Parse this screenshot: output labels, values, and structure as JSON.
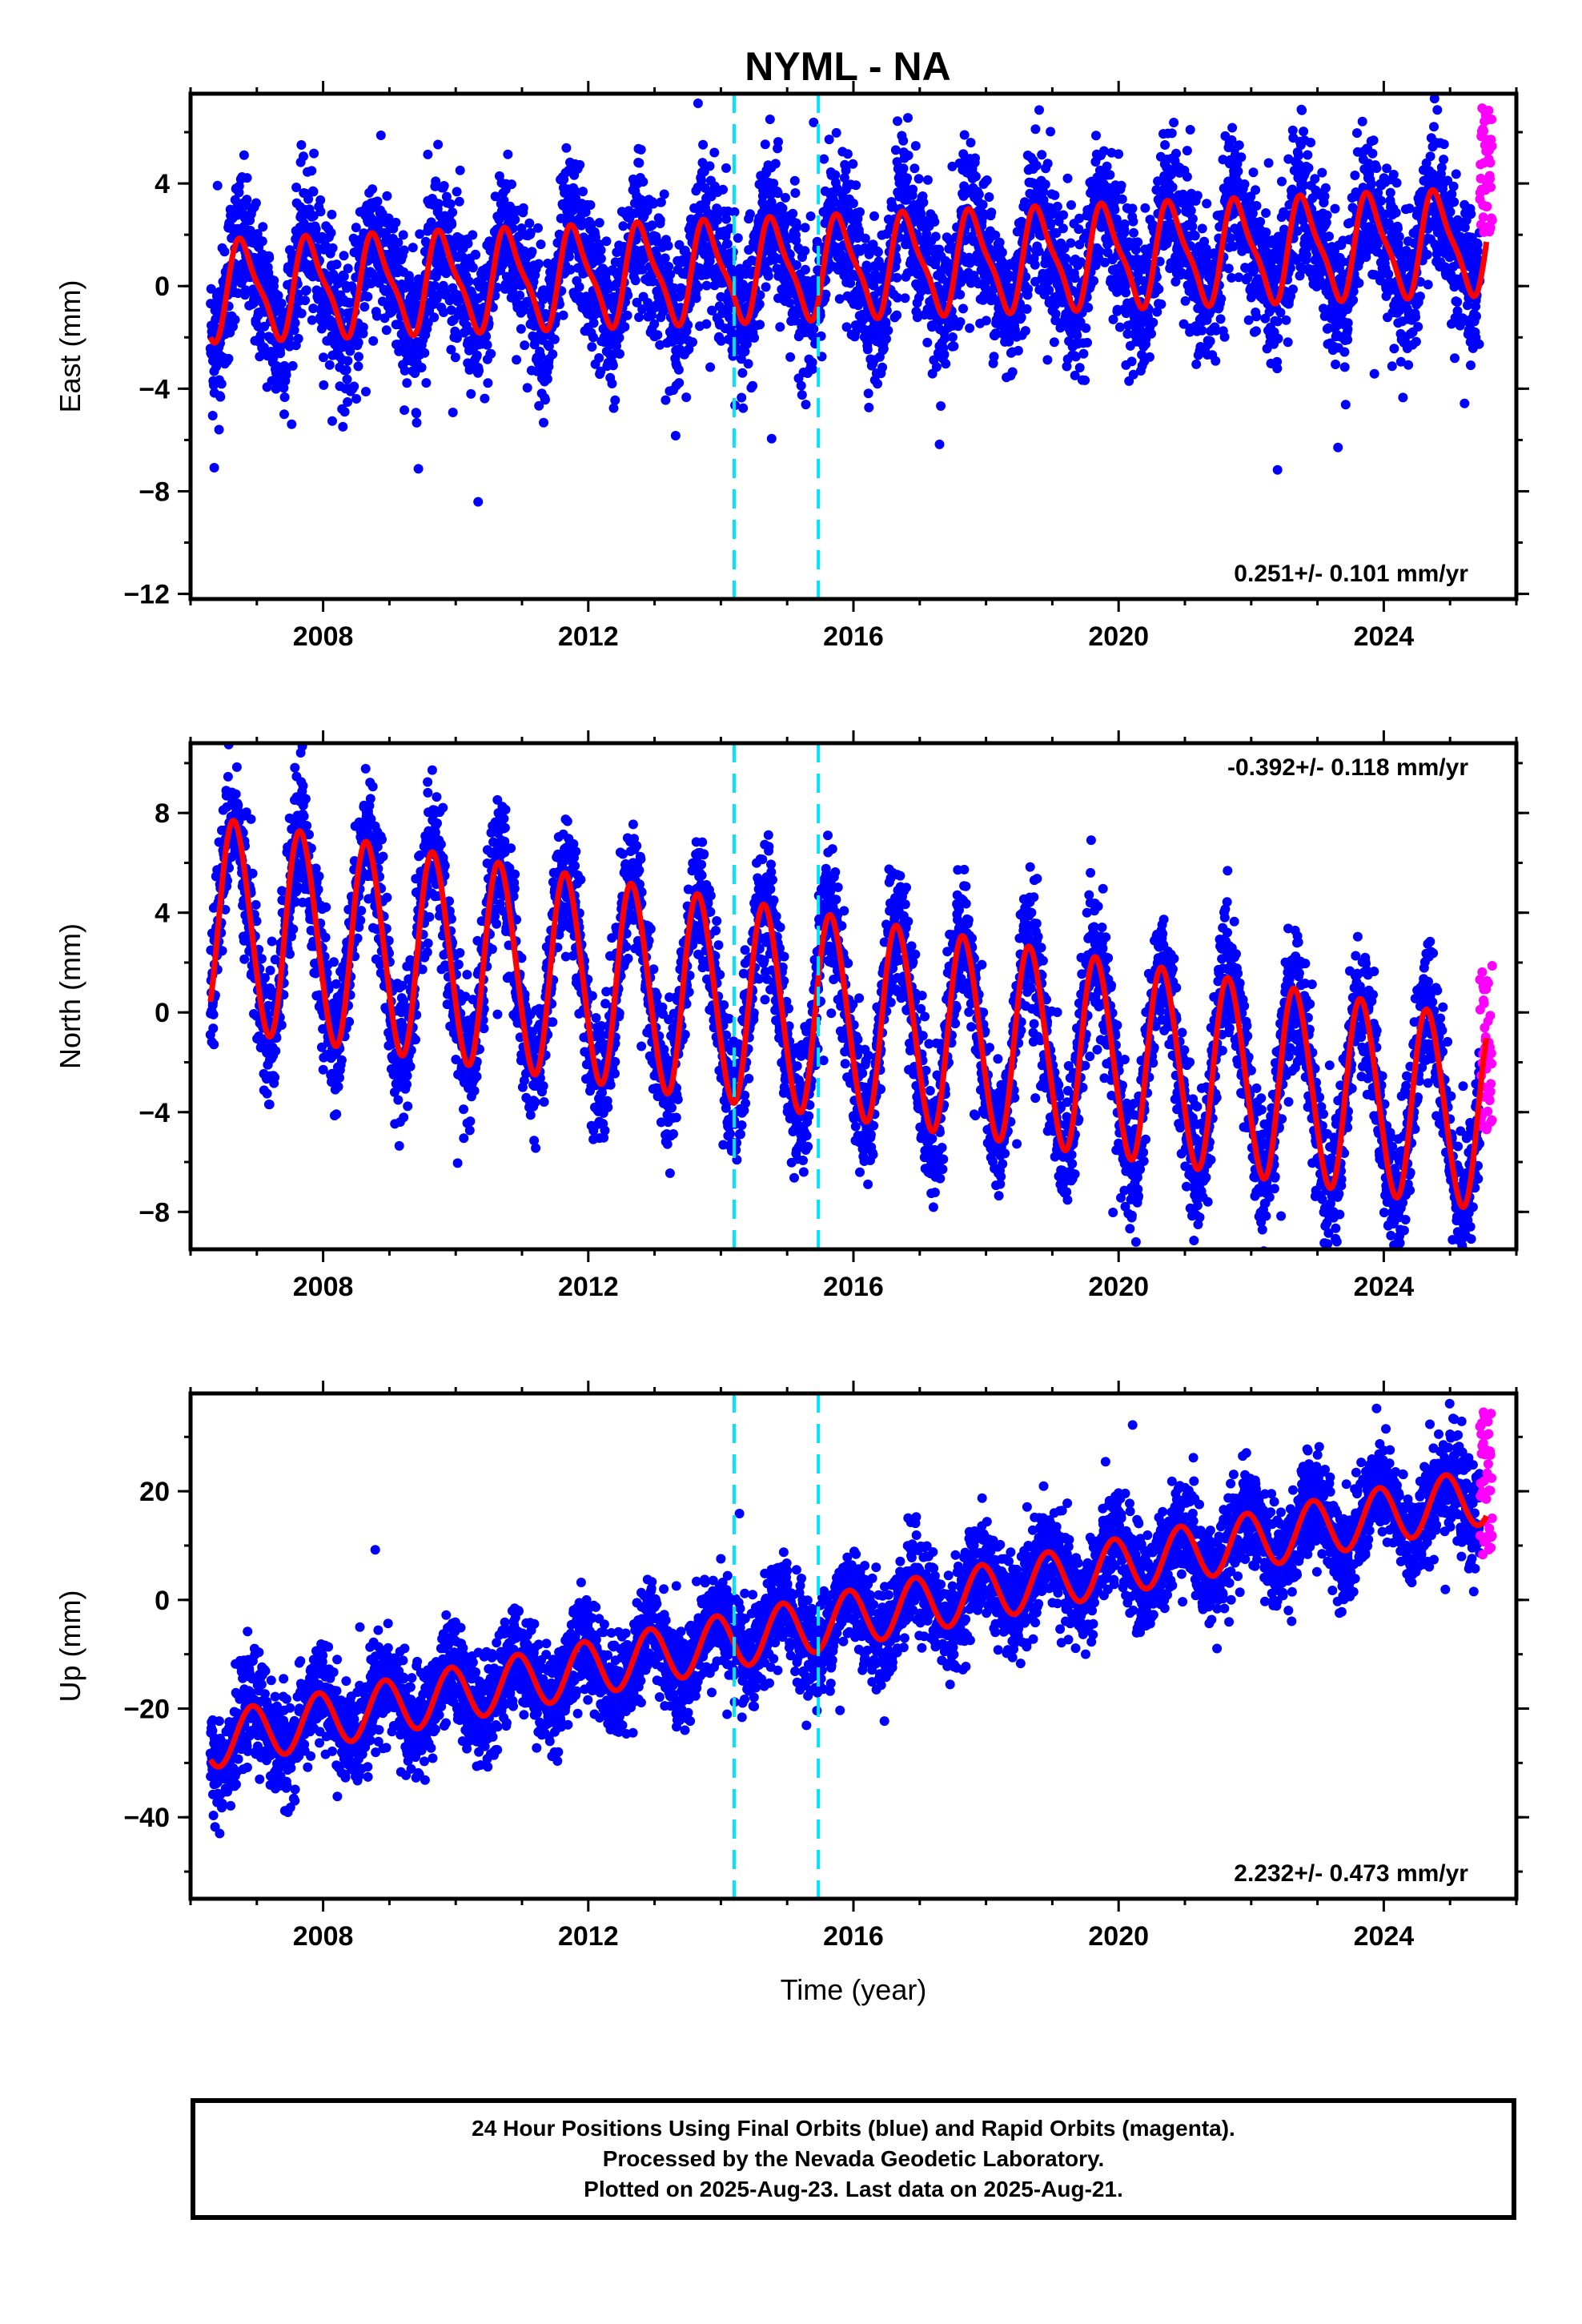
{
  "title": "NYML - NA",
  "chart_data": [
    {
      "type": "scatter",
      "panel": "east",
      "ylabel": "East (mm)",
      "xlabel": "",
      "xlim": [
        2006.0,
        2026.0
      ],
      "ylim": [
        -12.2,
        7.5
      ],
      "yticks": [
        -12,
        -8,
        -4,
        0,
        4
      ],
      "ytick_labels": [
        "−12",
        "−8",
        "−4",
        "0",
        "4"
      ],
      "xticks": [
        2008,
        2012,
        2016,
        2020,
        2024
      ],
      "xtick_labels": [
        "2008",
        "2012",
        "2016",
        "2020",
        "2024"
      ],
      "rate_label": "0.251+/- 0.101 mm/yr",
      "rate_position": "bottom-right",
      "vlines": [
        2014.2,
        2015.47
      ],
      "model": {
        "start": 2006.3,
        "end": 2025.55,
        "offset": -0.2,
        "trend": 0.1,
        "amp_start": 1.8,
        "amp_end": 1.9,
        "phase": 0.55,
        "semi_amp": 0.5
      },
      "series": [
        {
          "name": "Final Orbits",
          "color": "#0000ff",
          "x_range": [
            2006.3,
            2025.45
          ],
          "spread": 1.4
        },
        {
          "name": "Rapid Orbits",
          "color": "#ff00ff",
          "x_range": [
            2025.45,
            2025.64
          ],
          "y_range": [
            2.0,
            7.2
          ]
        }
      ]
    },
    {
      "type": "scatter",
      "panel": "north",
      "ylabel": "North (mm)",
      "xlabel": "",
      "xlim": [
        2006.0,
        2026.0
      ],
      "ylim": [
        -9.5,
        10.8
      ],
      "yticks": [
        -8,
        -4,
        0,
        4,
        8
      ],
      "ytick_labels": [
        "−8",
        "−4",
        "0",
        "4",
        "8"
      ],
      "xticks": [
        2008,
        2012,
        2016,
        2020,
        2024
      ],
      "xtick_labels": [
        "2008",
        "2012",
        "2016",
        "2020",
        "2024"
      ],
      "rate_label": "-0.392+/- 0.118 mm/yr",
      "rate_position": "top-right",
      "vlines": [
        2014.2,
        2015.47
      ],
      "model": {
        "start": 2006.3,
        "end": 2025.55,
        "offset": 3.6,
        "trend": -0.4,
        "amp_start": 4.2,
        "amp_end": 3.8,
        "phase": 0.42,
        "semi_amp": 0.3
      },
      "series": [
        {
          "name": "Final Orbits",
          "color": "#0000ff",
          "x_range": [
            2006.3,
            2025.45
          ],
          "spread": 1.3
        },
        {
          "name": "Rapid Orbits",
          "color": "#ff00ff",
          "x_range": [
            2025.45,
            2025.64
          ],
          "y_range": [
            -5.0,
            2.0
          ]
        }
      ]
    },
    {
      "type": "scatter",
      "panel": "up",
      "ylabel": "Up (mm)",
      "xlabel": "Time (year)",
      "xlim": [
        2006.0,
        2026.0
      ],
      "ylim": [
        -55,
        38
      ],
      "yticks": [
        -40,
        -20,
        0,
        20
      ],
      "ytick_labels": [
        "−40",
        "−20",
        "0",
        "20"
      ],
      "xticks": [
        2008,
        2012,
        2016,
        2020,
        2024
      ],
      "xtick_labels": [
        "2008",
        "2012",
        "2016",
        "2020",
        "2024"
      ],
      "rate_label": "2.232+/- 0.473 mm/yr",
      "rate_position": "bottom-right",
      "vlines": [
        2014.2,
        2015.47
      ],
      "model": {
        "start": 2006.3,
        "end": 2025.55,
        "offset": -26,
        "trend": 2.35,
        "amp_start": 5.0,
        "amp_end": 5.2,
        "phase": 0.68,
        "semi_amp": 0.0
      },
      "series": [
        {
          "name": "Final Orbits",
          "color": "#0000ff",
          "x_range": [
            2006.3,
            2025.45
          ],
          "spread": 4.5
        },
        {
          "name": "Rapid Orbits",
          "color": "#ff00ff",
          "x_range": [
            2025.45,
            2025.64
          ],
          "y_range": [
            8,
            35
          ]
        }
      ]
    }
  ],
  "colors": {
    "final": "#0000ff",
    "rapid": "#ff00ff",
    "model": "#ff0000",
    "offsets": "#00e5ff"
  },
  "footer": {
    "line1": "24 Hour Positions Using Final Orbits (blue) and Rapid Orbits (magenta).",
    "line2": "Processed by the Nevada Geodetic Laboratory.",
    "line3": "Plotted on 2025-Aug-23. Last data on 2025-Aug-21."
  }
}
